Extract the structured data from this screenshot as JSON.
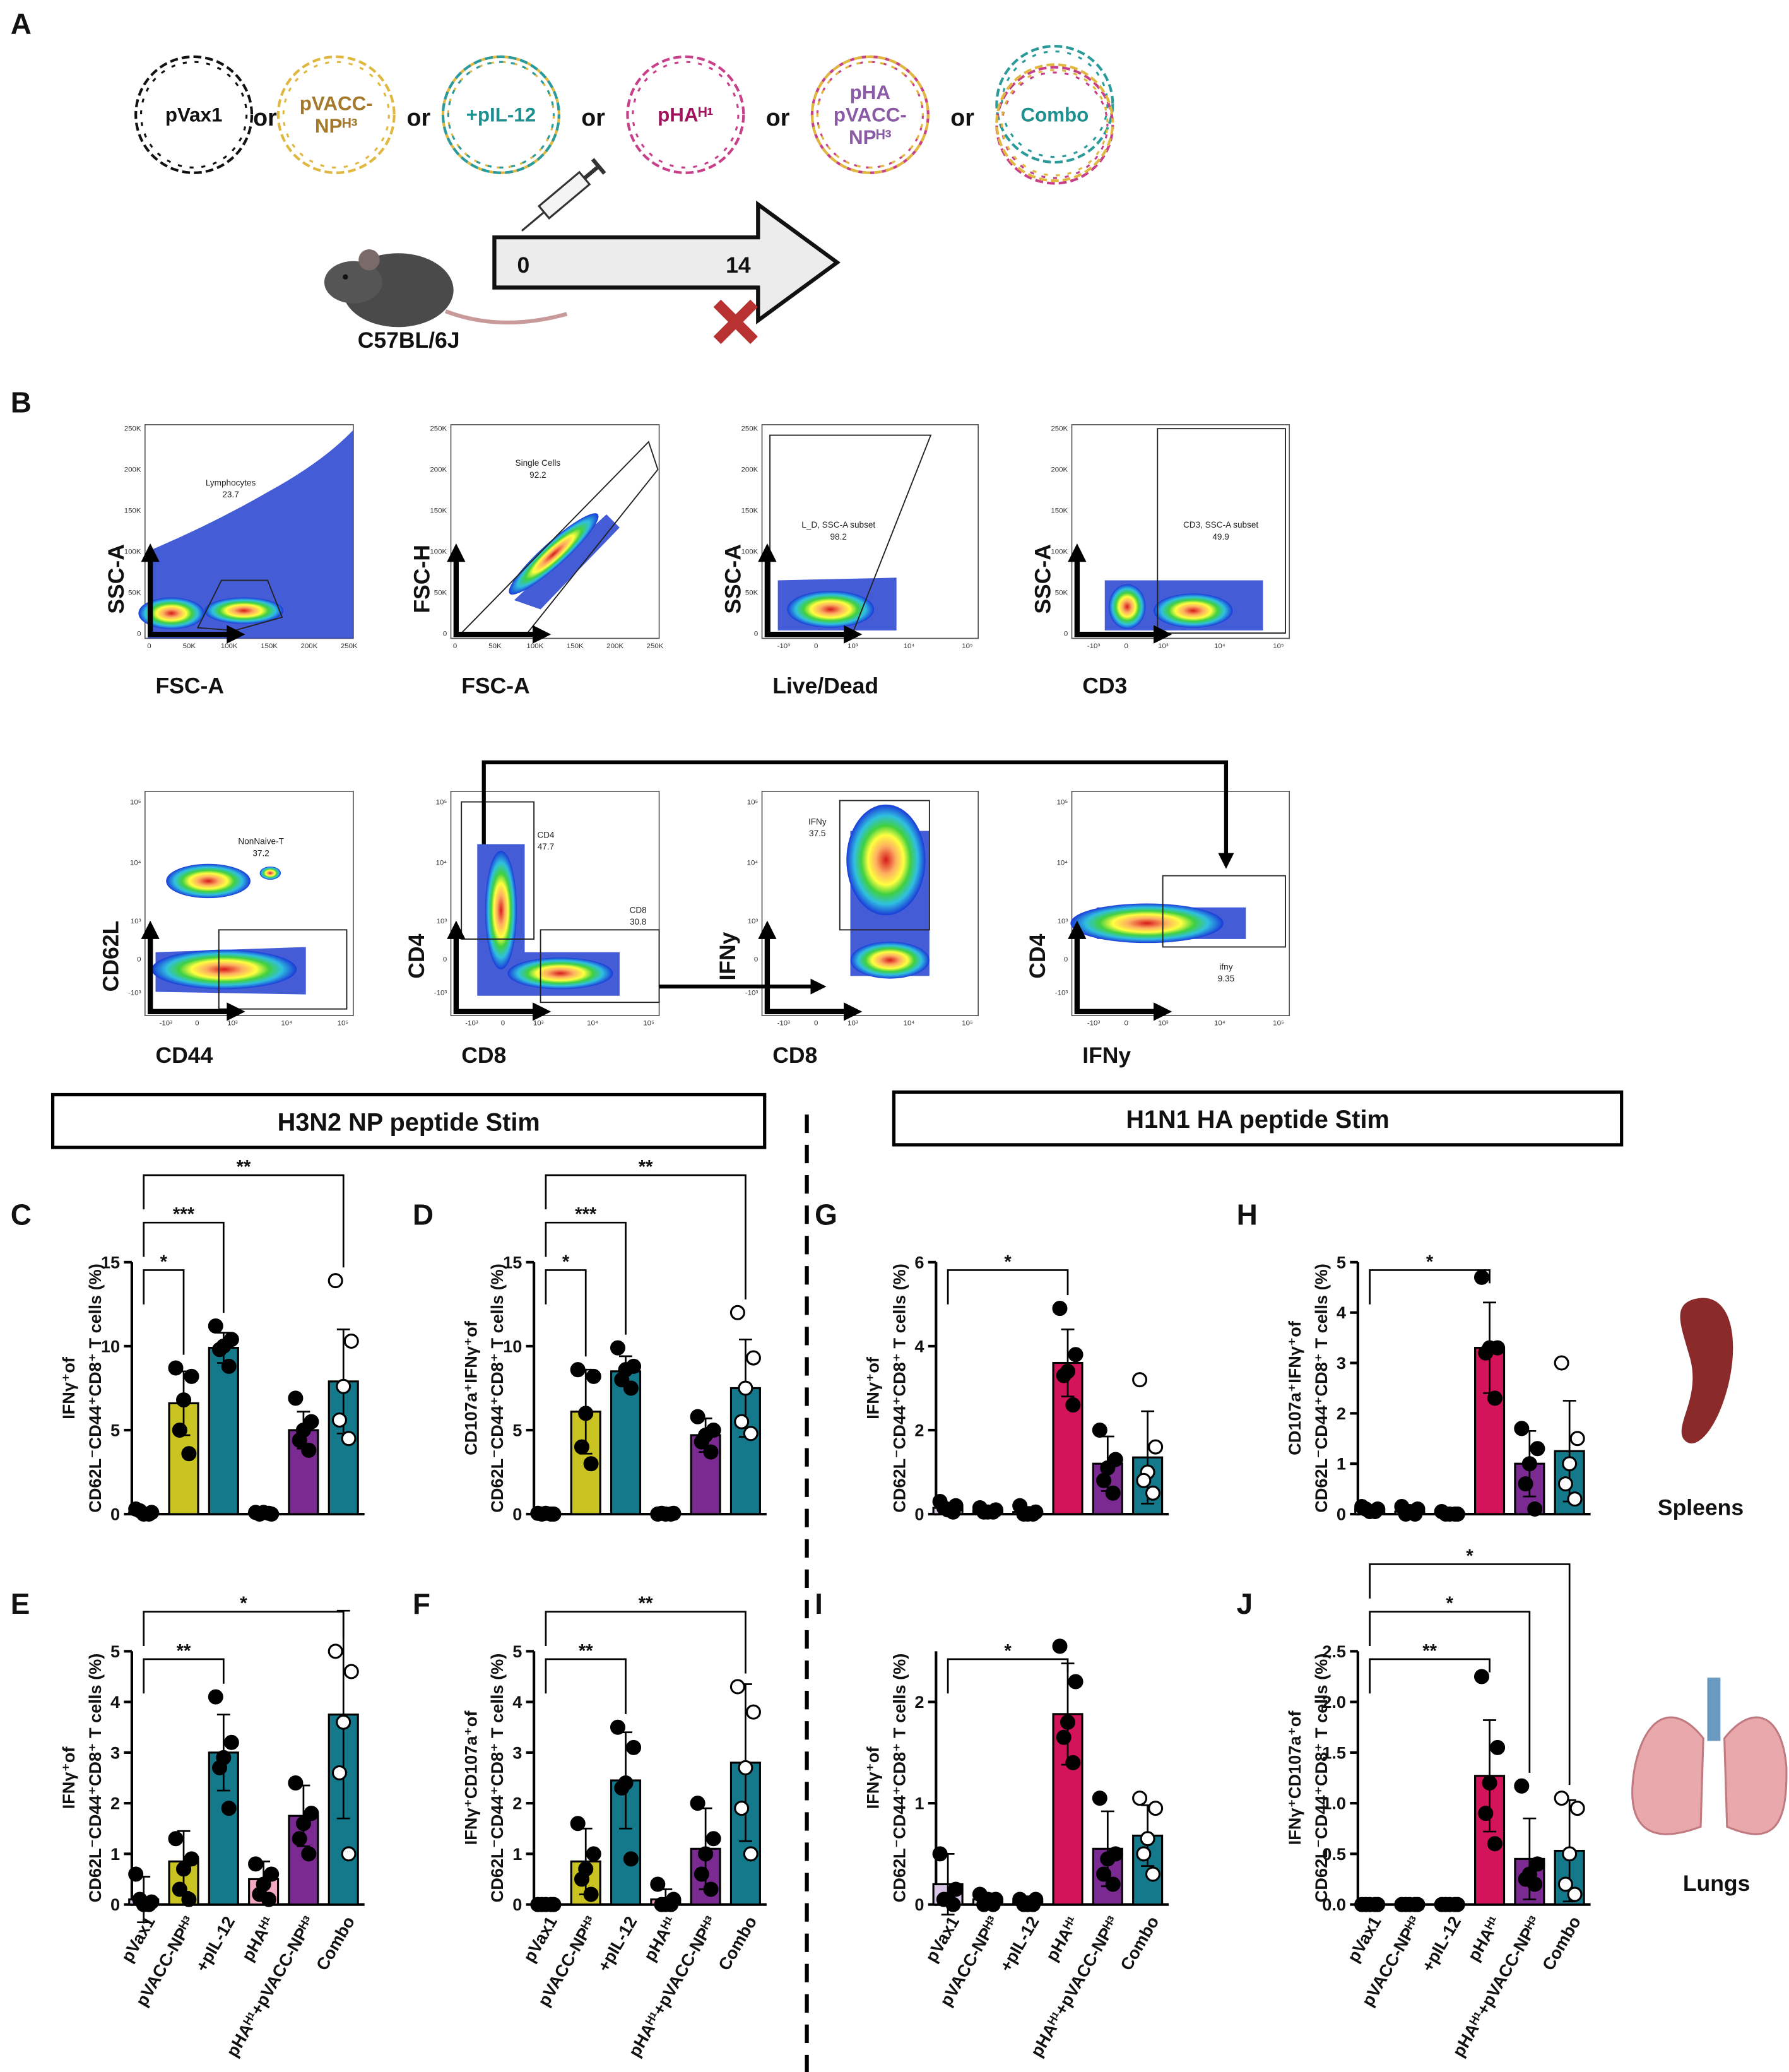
{
  "panel_a": {
    "label": "A",
    "plasmids": [
      [
        "pVax1"
      ],
      [
        "pVACC-",
        "NPᴴ³"
      ],
      [
        "+pIL-12"
      ],
      [
        "pHAᴴ¹"
      ],
      [
        "pHA",
        "pVACC-",
        "NPᴴ³"
      ],
      [
        "Combo"
      ]
    ],
    "connector": "or",
    "timeline": [
      "0",
      "14"
    ],
    "strain": "C57BL/6J"
  },
  "panel_b": {
    "label": "B",
    "linear_ticks": [
      "0",
      "50K",
      "100K",
      "150K",
      "200K",
      "250K"
    ],
    "log_ticks": [
      "-10³",
      "0",
      "10³",
      "10⁴",
      "10⁵"
    ],
    "plots": [
      {
        "x_label": "FSC-A",
        "y_label": "SSC-A",
        "x_scale": "linear",
        "y_scale": "linear",
        "gates": [
          {
            "name": "Lymphocytes",
            "percent": 23.7
          }
        ]
      },
      {
        "x_label": "FSC-A",
        "y_label": "FSC-H",
        "x_scale": "linear",
        "y_scale": "linear",
        "gates": [
          {
            "name": "Single Cells",
            "percent": 92.2
          }
        ]
      },
      {
        "x_label": "Live/Dead",
        "y_label": "SSC-A",
        "x_scale": "log",
        "y_scale": "linear",
        "gates": [
          {
            "name": "L_D, SSC-A subset",
            "percent": 98.2
          }
        ]
      },
      {
        "x_label": "CD3",
        "y_label": "SSC-A",
        "x_scale": "log",
        "y_scale": "linear",
        "gates": [
          {
            "name": "CD3, SSC-A subset",
            "percent": 49.9
          }
        ]
      },
      {
        "x_label": "CD44",
        "y_label": "CD62L",
        "x_scale": "log",
        "y_scale": "log",
        "gates": [
          {
            "name": "NonNaive-T",
            "percent": 37.2
          }
        ]
      },
      {
        "x_label": "CD8",
        "y_label": "CD4",
        "x_scale": "log",
        "y_scale": "log",
        "gates": [
          {
            "name": "CD4",
            "percent": 47.7
          },
          {
            "name": "CD8",
            "percent": 30.8
          }
        ]
      },
      {
        "x_label": "CD8",
        "y_label": "IFNy",
        "x_scale": "log",
        "y_scale": "log",
        "gates": [
          {
            "name": "IFNy",
            "percent": 37.5
          }
        ]
      },
      {
        "x_label": "IFNy",
        "y_label": "CD4",
        "x_scale": "log",
        "y_scale": "log",
        "gates": [
          {
            "name": "ifny",
            "percent": 9.35
          }
        ]
      }
    ]
  },
  "headers": [
    "H3N2 NP peptide Stim",
    "H1N1 HA peptide Stim"
  ],
  "tissues": [
    "Spleens",
    "Lungs"
  ],
  "chart_data": [
    {
      "type": "bar",
      "panel_label": "C",
      "y_label": [
        "IFNγ⁺of",
        "CD62L⁻CD44⁺CD8⁺ T cells (%)"
      ],
      "ylim": [
        0,
        15
      ],
      "yticks": [
        0,
        5,
        10,
        15
      ],
      "values": [
        0.1,
        6.6,
        9.9,
        0.05,
        5.0,
        7.9
      ],
      "errors": [
        0.15,
        1.9,
        0.9,
        0.1,
        1.1,
        3.1
      ],
      "points": [
        [
          0.3,
          0.1,
          0,
          0.2,
          0
        ],
        [
          8.7,
          8.2,
          6.8,
          5.0,
          3.6
        ],
        [
          11.2,
          10.4,
          10.0,
          9.8,
          8.8
        ],
        [
          0.1,
          0,
          0.1,
          0,
          0.05
        ],
        [
          6.9,
          5.5,
          5.0,
          4.4,
          3.8
        ],
        [
          13.9,
          10.3,
          7.6,
          5.6,
          4.5
        ]
      ],
      "colors": [
        "#d9c6e6",
        "#c9c421",
        "#14798b",
        "#f2a7c3",
        "#7a2a90",
        "#14798b"
      ],
      "open_points": [
        false,
        false,
        false,
        false,
        false,
        true
      ],
      "significance": [
        {
          "from": 0,
          "to": 1,
          "label": "*"
        },
        {
          "from": 0,
          "to": 2,
          "label": "***"
        },
        {
          "from": 0,
          "to": 5,
          "label": "**"
        }
      ]
    },
    {
      "type": "bar",
      "panel_label": "D",
      "y_label": [
        "CD107a⁺IFNγ⁺of",
        "CD62L⁻CD44⁺CD8⁺ T cells (%)"
      ],
      "ylim": [
        0,
        15
      ],
      "yticks": [
        0,
        5,
        10,
        15
      ],
      "values": [
        0,
        6.1,
        8.5,
        0,
        4.7,
        7.5
      ],
      "errors": [
        0.05,
        2.5,
        0.9,
        0.05,
        1.0,
        2.9
      ],
      "points": [
        [
          0.05,
          0,
          0.05,
          0,
          0
        ],
        [
          8.6,
          8.2,
          6.0,
          4.0,
          3.0
        ],
        [
          9.9,
          8.8,
          8.6,
          8.0,
          7.5
        ],
        [
          0,
          0.05,
          0,
          0.05,
          0
        ],
        [
          5.8,
          5.0,
          4.7,
          4.3,
          3.7
        ],
        [
          12.0,
          9.3,
          7.5,
          5.5,
          4.8
        ]
      ],
      "colors": [
        "#d9c6e6",
        "#c9c421",
        "#14798b",
        "#f2a7c3",
        "#7a2a90",
        "#14798b"
      ],
      "open_points": [
        false,
        false,
        false,
        false,
        false,
        true
      ],
      "significance": [
        {
          "from": 0,
          "to": 1,
          "label": "*"
        },
        {
          "from": 0,
          "to": 2,
          "label": "***"
        },
        {
          "from": 0,
          "to": 5,
          "label": "**"
        }
      ]
    },
    {
      "type": "bar",
      "panel_label": "E",
      "y_label": [
        "IFNγ⁺of",
        "CD62L⁻CD44⁺CD8⁺ T cells (%)"
      ],
      "ylim": [
        0,
        5
      ],
      "yticks": [
        0,
        1,
        2,
        3,
        4,
        5
      ],
      "categories": [
        "pVax1",
        "pVACC-NPᴴ³",
        "+pIL-12",
        "pHAᴴ¹",
        "pHAᴴ¹+pVACC-NPᴴ³",
        "Combo"
      ],
      "values": [
        0.1,
        0.85,
        3.0,
        0.5,
        1.75,
        3.75
      ],
      "errors": [
        0.45,
        0.6,
        0.75,
        0.35,
        0.6,
        2.05
      ],
      "points": [
        [
          0.6,
          0.05,
          0,
          0.1,
          0
        ],
        [
          1.3,
          0.9,
          0.7,
          0.3,
          0.1
        ],
        [
          4.1,
          3.2,
          2.9,
          2.7,
          1.9
        ],
        [
          0.8,
          0.6,
          0.4,
          0.2,
          0.1
        ],
        [
          2.4,
          1.8,
          1.6,
          1.3,
          1.0
        ],
        [
          5.0,
          4.6,
          3.6,
          2.6,
          1.0
        ]
      ],
      "colors": [
        "#d9c6e6",
        "#c9c421",
        "#14798b",
        "#f2a7c3",
        "#7a2a90",
        "#14798b"
      ],
      "open_points": [
        false,
        false,
        false,
        false,
        false,
        true
      ],
      "significance": [
        {
          "from": 0,
          "to": 2,
          "label": "**"
        },
        {
          "from": 0,
          "to": 5,
          "label": "*"
        }
      ]
    },
    {
      "type": "bar",
      "panel_label": "F",
      "y_label": [
        "IFNγ⁺CD107a⁺of",
        "CD62L⁻CD44⁺CD8⁺ T cells (%)"
      ],
      "ylim": [
        0,
        5
      ],
      "yticks": [
        0,
        1,
        2,
        3,
        4,
        5
      ],
      "categories": [
        "pVax1",
        "pVACC-NPᴴ³",
        "+pIL-12",
        "pHAᴴ¹",
        "pHAᴴ¹+pVACC-NPᴴ³",
        "Combo"
      ],
      "values": [
        0,
        0.85,
        2.45,
        0.1,
        1.1,
        2.8
      ],
      "errors": [
        0.02,
        0.65,
        0.95,
        0.2,
        0.8,
        1.55
      ],
      "points": [
        [
          0,
          0,
          0,
          0,
          0
        ],
        [
          1.6,
          1.0,
          0.7,
          0.5,
          0.2
        ],
        [
          3.5,
          3.1,
          2.4,
          2.3,
          0.9
        ],
        [
          0.4,
          0.1,
          0,
          0,
          0
        ],
        [
          2.0,
          1.3,
          1.0,
          0.6,
          0.3
        ],
        [
          4.3,
          3.8,
          2.7,
          1.9,
          1.0
        ]
      ],
      "colors": [
        "#d9c6e6",
        "#c9c421",
        "#14798b",
        "#f2a7c3",
        "#7a2a90",
        "#14798b"
      ],
      "open_points": [
        false,
        false,
        false,
        false,
        false,
        true
      ],
      "significance": [
        {
          "from": 0,
          "to": 2,
          "label": "**"
        },
        {
          "from": 0,
          "to": 5,
          "label": "**"
        }
      ]
    },
    {
      "type": "bar",
      "panel_label": "G",
      "y_label": [
        "IFNγ⁺of",
        "CD62L⁻CD44⁺CD8⁺ T cells (%)"
      ],
      "ylim": [
        0,
        6
      ],
      "yticks": [
        0,
        2,
        4,
        6
      ],
      "values": [
        0.15,
        0.08,
        0.05,
        3.6,
        1.2,
        1.35
      ],
      "errors": [
        0.12,
        0.06,
        0.12,
        0.8,
        0.65,
        1.1
      ],
      "points": [
        [
          0.3,
          0.2,
          0.1,
          0.15,
          0.05
        ],
        [
          0.15,
          0.1,
          0.05,
          0.05,
          0.05
        ],
        [
          0.2,
          0.05,
          0,
          0,
          0
        ],
        [
          4.9,
          3.8,
          3.4,
          3.3,
          2.6
        ],
        [
          2.0,
          1.3,
          1.1,
          0.8,
          0.5
        ],
        [
          3.2,
          1.6,
          1.0,
          0.8,
          0.5
        ]
      ],
      "colors": [
        "#d9c6e6",
        "#d9d9d9",
        "#bfe0e6",
        "#d4145a",
        "#7a2a90",
        "#14798b"
      ],
      "open_points": [
        false,
        false,
        false,
        false,
        false,
        true
      ],
      "significance": [
        {
          "from": 0,
          "to": 3,
          "label": "*"
        }
      ]
    },
    {
      "type": "bar",
      "panel_label": "H",
      "y_label": [
        "CD107a⁺IFNγ⁺of",
        "CD62L⁻CD44⁺CD8⁺ T cells (%)"
      ],
      "ylim": [
        0,
        5
      ],
      "yticks": [
        0,
        1,
        2,
        3,
        4,
        5
      ],
      "values": [
        0.1,
        0.05,
        0.02,
        3.3,
        1.0,
        1.25
      ],
      "errors": [
        0.06,
        0.08,
        0.03,
        0.9,
        0.65,
        1.0
      ],
      "points": [
        [
          0.15,
          0.1,
          0.05,
          0.1,
          0.05
        ],
        [
          0.15,
          0.1,
          0.05,
          0,
          0
        ],
        [
          0.05,
          0,
          0,
          0,
          0
        ],
        [
          4.7,
          3.3,
          3.3,
          3.2,
          2.3
        ],
        [
          1.7,
          1.3,
          1.0,
          0.6,
          0.1
        ],
        [
          3.0,
          1.5,
          1.0,
          0.6,
          0.3
        ]
      ],
      "colors": [
        "#d9c6e6",
        "#d9d9d9",
        "#bfe0e6",
        "#d4145a",
        "#7a2a90",
        "#14798b"
      ],
      "open_points": [
        false,
        false,
        false,
        false,
        false,
        true
      ],
      "significance": [
        {
          "from": 0,
          "to": 3,
          "label": "*"
        }
      ]
    },
    {
      "type": "bar",
      "panel_label": "I",
      "y_label": [
        "IFNγ⁺of",
        "CD62L⁻CD44⁺CD8⁺ T cells (%)"
      ],
      "ylim": [
        0,
        2.5
      ],
      "yticks": [
        0,
        1,
        2
      ],
      "categories": [
        "pVax1",
        "pVACC-NPᴴ³",
        "+pIL-12",
        "pHAᴴ¹",
        "pHAᴴ¹+pVACC-NPᴴ³",
        "Combo"
      ],
      "values": [
        0.2,
        0.05,
        0.03,
        1.88,
        0.55,
        0.68
      ],
      "errors": [
        0.3,
        0.06,
        0.05,
        0.5,
        0.37,
        0.3
      ],
      "points": [
        [
          0.5,
          0.15,
          0.05,
          0.05,
          0
        ],
        [
          0.1,
          0.05,
          0.05,
          0,
          0
        ],
        [
          0.05,
          0.05,
          0,
          0,
          0
        ],
        [
          2.55,
          2.2,
          1.8,
          1.65,
          1.4
        ],
        [
          1.05,
          0.5,
          0.45,
          0.3,
          0.2
        ],
        [
          1.05,
          0.95,
          0.65,
          0.5,
          0.3
        ]
      ],
      "colors": [
        "#d9c6e6",
        "#d9d9d9",
        "#bfe0e6",
        "#d4145a",
        "#7a2a90",
        "#14798b"
      ],
      "open_points": [
        false,
        false,
        false,
        false,
        false,
        true
      ],
      "significance": [
        {
          "from": 0,
          "to": 3,
          "label": "*"
        }
      ]
    },
    {
      "type": "bar",
      "panel_label": "J",
      "y_label": [
        "IFNγ⁺CD107a⁺of",
        "CD62L⁻CD44⁺CD8⁺ T cells (%)"
      ],
      "ylim": [
        0,
        2.5
      ],
      "yticks": [
        {
          "value": 0,
          "label": "0.0"
        },
        {
          "value": 0.5,
          "label": "0.5"
        },
        {
          "value": 1,
          "label": "1.0"
        },
        {
          "value": 1.5,
          "label": "1.5"
        },
        {
          "value": 2,
          "label": "2.0"
        },
        {
          "value": 2.5,
          "label": "2.5"
        }
      ],
      "categories": [
        "pVax1",
        "pVACC-NPᴴ³",
        "+pIL-12",
        "pHAᴴ¹",
        "pHAᴴ¹+pVACC-NPᴴ³",
        "Combo"
      ],
      "values": [
        0,
        0,
        0,
        1.27,
        0.45,
        0.53
      ],
      "errors": [
        0.01,
        0.01,
        0.01,
        0.55,
        0.4,
        0.5
      ],
      "points": [
        [
          0,
          0,
          0,
          0,
          0
        ],
        [
          0,
          0,
          0,
          0,
          0
        ],
        [
          0,
          0,
          0,
          0,
          0
        ],
        [
          2.25,
          1.55,
          1.2,
          0.9,
          0.6
        ],
        [
          1.17,
          0.4,
          0.3,
          0.25,
          0.2
        ],
        [
          1.05,
          0.95,
          0.5,
          0.2,
          0.1
        ]
      ],
      "colors": [
        "#d9c6e6",
        "#d9d9d9",
        "#bfe0e6",
        "#d4145a",
        "#7a2a90",
        "#14798b"
      ],
      "open_points": [
        false,
        false,
        false,
        false,
        false,
        true
      ],
      "significance": [
        {
          "from": 0,
          "to": 3,
          "label": "**"
        },
        {
          "from": 0,
          "to": 4,
          "label": "*"
        },
        {
          "from": 0,
          "to": 5,
          "label": "*"
        }
      ]
    }
  ]
}
